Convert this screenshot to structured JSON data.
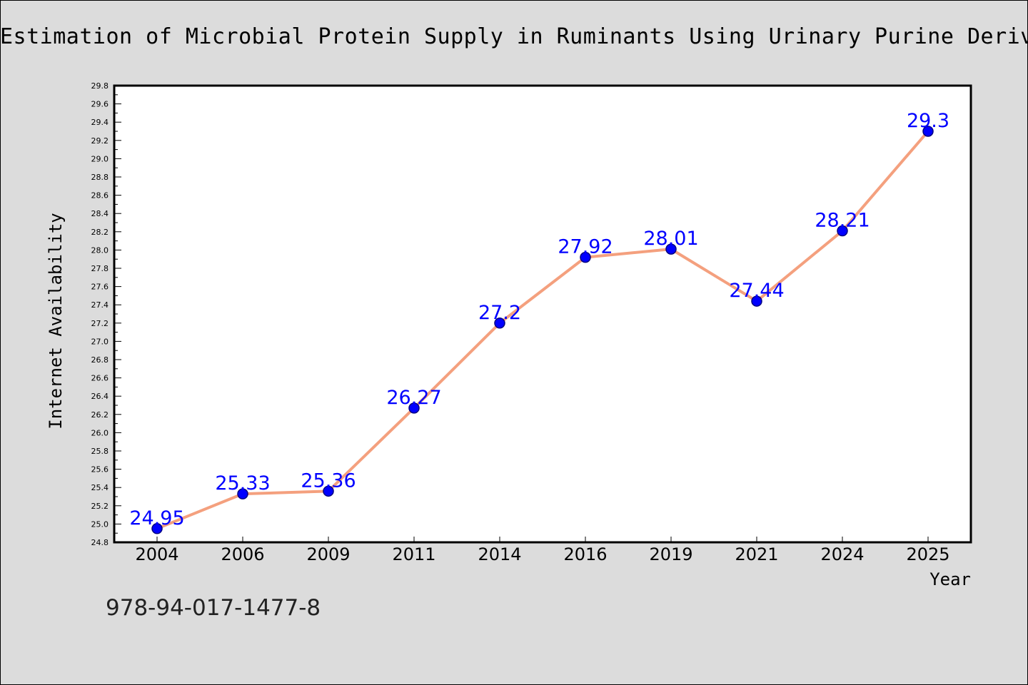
{
  "chart_data": {
    "type": "line",
    "title": "Estimation of Microbial Protein Supply in Ruminants Using Urinary Purine Derivat",
    "xlabel": "Year",
    "ylabel": "Internet Availability",
    "categories": [
      "2004",
      "2006",
      "2009",
      "2011",
      "2014",
      "2016",
      "2019",
      "2021",
      "2024",
      "2025"
    ],
    "series": [
      {
        "values": [
          24.95,
          25.33,
          25.36,
          26.27,
          27.2,
          27.92,
          28.01,
          27.44,
          28.21,
          29.3
        ],
        "labels": [
          "24.95",
          "25.33",
          "25.36",
          "26.27",
          "27.2",
          "27.92",
          "28.01",
          "27.44",
          "28.21",
          "29.3"
        ]
      }
    ],
    "ylim": [
      24.8,
      29.8
    ],
    "yticks": [
      "24.8",
      "25.0",
      "25.2",
      "25.4",
      "25.6",
      "25.8",
      "26.0",
      "26.2",
      "26.4",
      "26.6",
      "26.8",
      "27.0",
      "27.2",
      "27.4",
      "27.6",
      "27.8",
      "28.0",
      "28.2",
      "28.4",
      "28.6",
      "28.8",
      "29.0",
      "29.2",
      "29.4",
      "29.6",
      "29.8"
    ],
    "grid": false,
    "colors": {
      "line": "#f4a07e",
      "marker": "#0000ff",
      "marker_edge": "#000080",
      "label": "#0000ff",
      "background": "#dcdcdc",
      "plot_background": "#ffffff"
    }
  },
  "footer_code": "978-94-017-1477-8"
}
